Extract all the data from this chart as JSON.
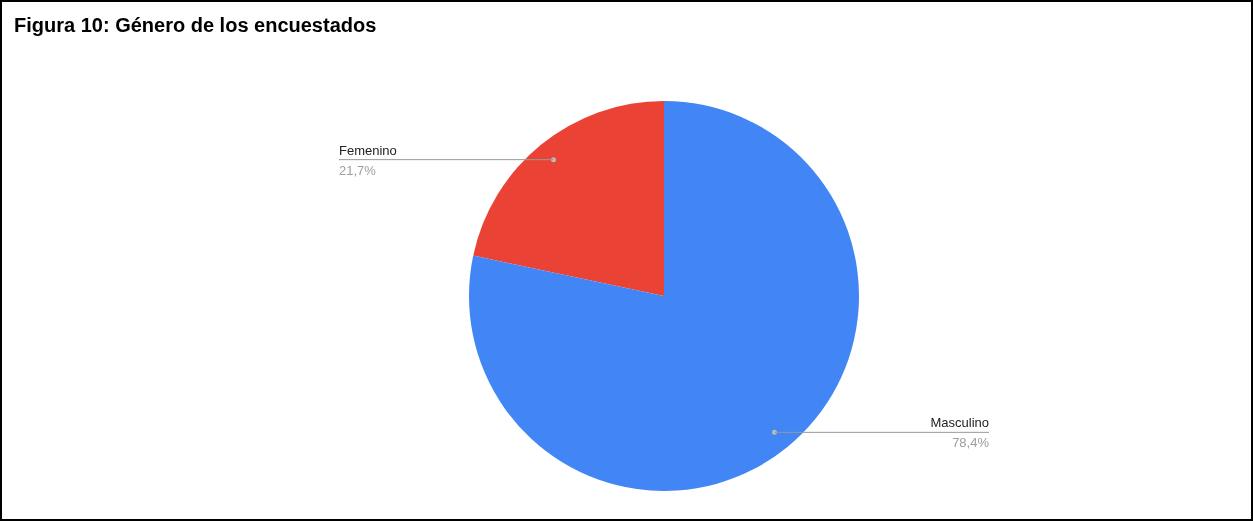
{
  "chart_data": {
    "type": "pie",
    "title": "Figura 10: Género de los encuestados",
    "categories": [
      "Femenino",
      "Masculino"
    ],
    "values": [
      21.7,
      78.4
    ],
    "colors": [
      "#ea4335",
      "#4285f4"
    ],
    "value_labels": [
      "21,7%",
      "78,4%"
    ],
    "legend": false
  }
}
